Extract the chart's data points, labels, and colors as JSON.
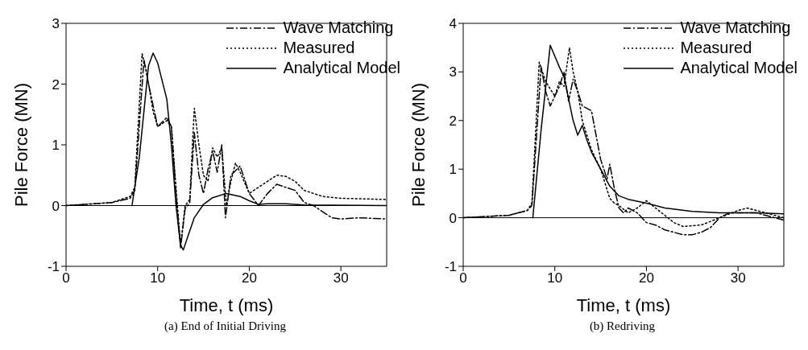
{
  "chart_data": [
    {
      "type": "line",
      "title": "(a) End of Initial Driving",
      "xlabel": "Time, t (ms)",
      "ylabel": "Pile Force (MN)",
      "xlim": [
        0,
        35
      ],
      "xticks": [
        0,
        10,
        20,
        30
      ],
      "ylim": [
        -1,
        3
      ],
      "yticks": [
        -1,
        0,
        1,
        2,
        3
      ],
      "grid": false,
      "legend": "top right",
      "ref_lines": [
        {
          "axis": "y",
          "value": 0,
          "color": "#000000",
          "line_style": "solid"
        }
      ],
      "series": [
        {
          "name": "Wave Matching",
          "color": "#000000",
          "line_style": "dashed",
          "x": [
            0,
            5,
            7,
            7.5,
            8.5,
            9,
            10,
            11,
            11.5,
            12,
            12.5,
            13,
            13.5,
            14,
            14.5,
            15,
            15.5,
            16,
            16.5,
            17,
            17.4,
            18,
            19,
            20,
            21,
            22,
            23,
            24,
            25,
            26,
            27,
            28,
            29,
            30,
            32,
            35
          ],
          "values": [
            0,
            0.05,
            0.12,
            0.25,
            2.4,
            2.0,
            1.3,
            1.45,
            1.3,
            0.2,
            -0.7,
            -0.05,
            0.05,
            1.2,
            0.5,
            0.2,
            0.6,
            0.9,
            0.55,
            1.0,
            -0.2,
            0.5,
            0.65,
            0.2,
            0.0,
            0.2,
            0.35,
            0.3,
            0.25,
            0.05,
            0.0,
            -0.1,
            -0.2,
            -0.22,
            -0.2,
            -0.22
          ]
        },
        {
          "name": "Measured",
          "color": "#000000",
          "line_style": "dotted",
          "x": [
            0,
            5,
            7,
            7.5,
            8.3,
            8.8,
            9.5,
            10,
            10.5,
            11,
            11.5,
            12,
            12.5,
            13,
            13.5,
            14,
            14.5,
            15,
            15.5,
            16,
            16.5,
            17,
            17.5,
            18,
            18.5,
            19,
            20,
            21,
            22,
            23,
            24,
            25,
            26,
            28,
            30,
            35
          ],
          "values": [
            0,
            0.05,
            0.15,
            0.3,
            2.5,
            2.2,
            1.55,
            1.3,
            1.35,
            1.4,
            1.3,
            0.3,
            -0.65,
            0,
            0.1,
            1.6,
            1.0,
            0.5,
            0.4,
            0.95,
            0.8,
            0.95,
            0.0,
            0.4,
            0.7,
            0.55,
            0.2,
            0.3,
            0.4,
            0.5,
            0.48,
            0.4,
            0.25,
            0.15,
            0.12,
            0.1
          ]
        },
        {
          "name": "Analytical Model",
          "color": "#000000",
          "line_style": "solid",
          "x": [
            7.2,
            8,
            9,
            9.5,
            10,
            11,
            11.5,
            12,
            12.5,
            12.8,
            13.2,
            14,
            15,
            16,
            17.5,
            19,
            20,
            21,
            22,
            24,
            26,
            35
          ],
          "values": [
            0,
            0.8,
            2.3,
            2.51,
            2.35,
            1.75,
            1.0,
            0.0,
            -0.65,
            -0.73,
            -0.55,
            -0.2,
            0.02,
            0.13,
            0.2,
            0.15,
            0.08,
            0.02,
            0.03,
            0.03,
            0.01,
            0.0
          ]
        }
      ]
    },
    {
      "type": "line",
      "title": "(b) Redriving",
      "xlabel": "Time, t (ms)",
      "ylabel": "Pile Force (MN)",
      "xlim": [
        0,
        35
      ],
      "xticks": [
        0,
        10,
        20,
        30
      ],
      "ylim": [
        -1,
        4
      ],
      "yticks": [
        -1,
        0,
        1,
        2,
        3,
        4
      ],
      "grid": false,
      "legend": "top right",
      "ref_lines": [
        {
          "axis": "y",
          "value": 0,
          "color": "#000000",
          "line_style": "solid"
        }
      ],
      "series": [
        {
          "name": "Wave Matching",
          "color": "#000000",
          "line_style": "dashed",
          "x": [
            0,
            5,
            7,
            7.5,
            8.5,
            9,
            9.5,
            10,
            10.5,
            11,
            11.5,
            12,
            12.5,
            13,
            14,
            15,
            15.7,
            16,
            16.5,
            17,
            17.5,
            18,
            19,
            20,
            21,
            22,
            24,
            25,
            26,
            27,
            28,
            29,
            30,
            32,
            34,
            35
          ],
          "values": [
            0,
            0.05,
            0.15,
            0.25,
            3.1,
            2.6,
            2.3,
            2.5,
            2.7,
            3.0,
            2.4,
            2.85,
            2.6,
            2.3,
            2.2,
            1.2,
            0.8,
            1.1,
            0.6,
            0.2,
            0.1,
            0.2,
            0.1,
            -0.1,
            -0.15,
            -0.25,
            -0.35,
            -0.35,
            -0.3,
            -0.2,
            0.0,
            0.1,
            0.1,
            0.1,
            0.0,
            -0.05
          ]
        },
        {
          "name": "Measured",
          "color": "#000000",
          "line_style": "dotted",
          "x": [
            0,
            5,
            7,
            7.5,
            8.3,
            9,
            10,
            10.5,
            11,
            11.6,
            12,
            12.5,
            13,
            14,
            15,
            16,
            16.5,
            17,
            18,
            19,
            20,
            21,
            22,
            23,
            24,
            26,
            28,
            30,
            31,
            32,
            34,
            35
          ],
          "values": [
            0,
            0.05,
            0.15,
            0.3,
            3.2,
            2.8,
            2.5,
            2.8,
            2.7,
            3.5,
            3.0,
            2.6,
            2.0,
            1.4,
            1.0,
            0.4,
            0.3,
            0.25,
            0.1,
            0.2,
            0.35,
            0.2,
            0.05,
            -0.1,
            -0.18,
            -0.15,
            0.0,
            0.15,
            0.2,
            0.15,
            0.05,
            0.0
          ]
        },
        {
          "name": "Analytical Model",
          "color": "#000000",
          "line_style": "solid",
          "x": [
            7.6,
            8.5,
            9.5,
            10.5,
            11,
            12,
            12.5,
            13,
            13.5,
            14,
            15,
            16,
            17,
            18,
            20,
            22,
            25,
            28,
            30,
            32,
            35
          ],
          "values": [
            0,
            1.8,
            3.55,
            3.1,
            2.9,
            2.0,
            1.7,
            1.9,
            1.6,
            1.35,
            1.0,
            0.65,
            0.45,
            0.38,
            0.3,
            0.2,
            0.13,
            0.1,
            0.1,
            0.1,
            0.08
          ]
        }
      ]
    }
  ]
}
